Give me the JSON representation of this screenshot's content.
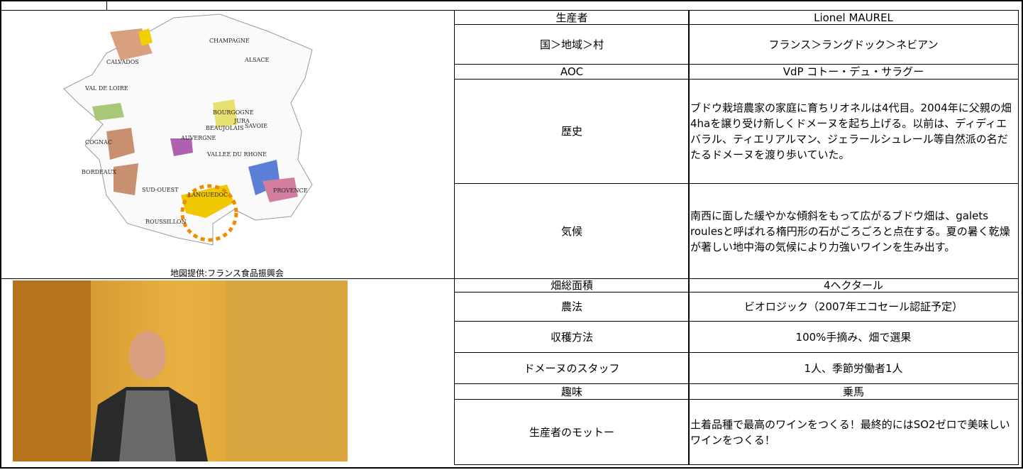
{
  "map": {
    "labels": [
      "CHAMPAGNE",
      "CALVADOS",
      "ALSACE",
      "VAL DE LOIRE",
      "BOURGOGNE",
      "JURA",
      "SAVOIE",
      "BEAUJOLAIS",
      "COGNAC",
      "AUVERGNE",
      "VALLEE DU RHONE",
      "BORDEAUX",
      "LANGUEDOC",
      "PROVENCE",
      "SUD-OUEST",
      "ROUSSILLON"
    ],
    "caption": "地図提供:フランス食品振興会"
  },
  "table": {
    "rows": [
      [
        "生産者",
        "Lionel MAUREL"
      ],
      [
        "国＞地域＞村",
        "フランス＞ラングドック＞ネビアン"
      ],
      [
        "AOC",
        "VdP コトー・デュ・サラグー"
      ],
      [
        "歴史",
        "ブドウ栽培農家の家庭に育ちリオネルは4代目。2004年に父親の畑4haを譲り受け新しくドメーヌを起ち上げる。以前は、ディディエバラル、ティエリアルマン、ジェラールシュレール等自然派の名だたるドメーヌを渡り歩いていた。"
      ],
      [
        "気候",
        "南西に面した緩やかな傾斜をもって広がるブドウ畑は、galets roulesと呼ばれる楕円形の石がごろごろと点在する。夏の暑く乾燥が著しい地中海の気候により力強いワインを生み出す。"
      ],
      [
        "畑総面積",
        "4ヘクタール"
      ],
      [
        "農法",
        "ビオロジック（2007年エコセール認証予定）"
      ],
      [
        "収穫方法",
        "100%手摘み、畑で選果"
      ],
      [
        "ドメーヌのスタッフ",
        "1人、季節労働者1人"
      ],
      [
        "趣味",
        "乗馬"
      ],
      [
        "生産者のモットー",
        "土着品種で最高のワインをつくる！最終的にはSO2ゼロで美味しいワインをつくる！"
      ]
    ]
  }
}
